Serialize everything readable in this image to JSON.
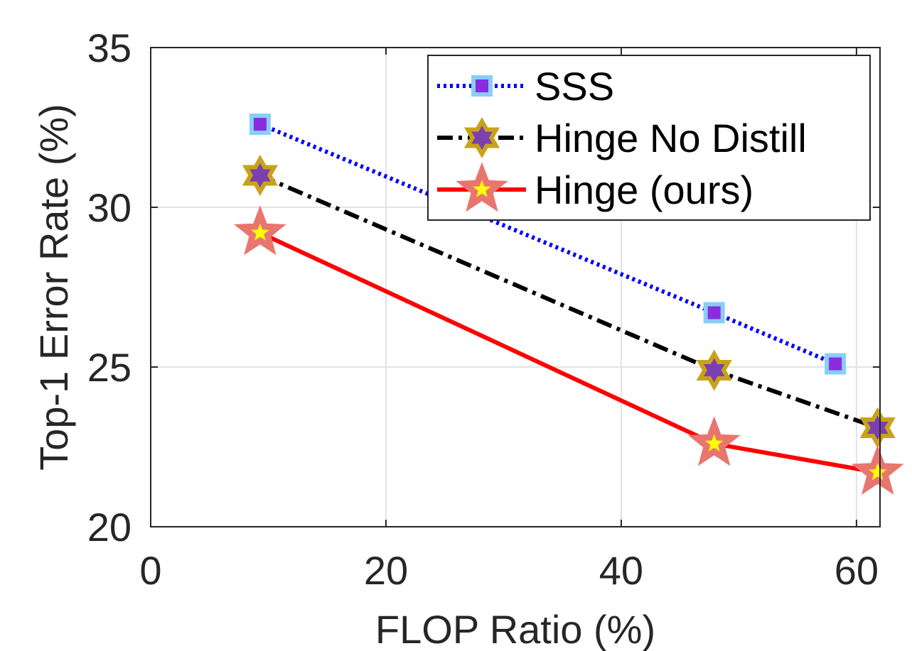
{
  "chart_data": {
    "type": "line",
    "title": "",
    "xlabel": "FLOP Ratio (%)",
    "ylabel": "Top-1 Error Rate (%)",
    "xlim": [
      0,
      62
    ],
    "ylim": [
      20,
      35
    ],
    "xticks": [
      "0",
      "20",
      "40",
      "60"
    ],
    "yticks": [
      "20",
      "25",
      "30",
      "35"
    ],
    "grid": true,
    "legend_position": "top-right",
    "series": [
      {
        "name": "SSS",
        "line_style": "dotted",
        "marker": "square",
        "color": "#0000ff",
        "marker_face": "#8a2be2",
        "marker_edge": "#87cefa",
        "x": [
          9.3,
          47.9,
          58.2
        ],
        "y": [
          32.6,
          26.7,
          25.1
        ]
      },
      {
        "name": "Hinge No Distill",
        "line_style": "dashdot",
        "marker": "hexagram",
        "color": "#000000",
        "marker_face": "#7a3fb0",
        "marker_edge": "#c8a21a",
        "x": [
          9.3,
          47.9,
          61.8
        ],
        "y": [
          31.0,
          24.9,
          23.1
        ]
      },
      {
        "name": "Hinge (ours)",
        "line_style": "solid",
        "marker": "pentagram",
        "color": "#ff0000",
        "marker_face": "#ffff00",
        "marker_edge": "#e8766e",
        "x": [
          9.3,
          47.9,
          61.8
        ],
        "y": [
          29.2,
          22.6,
          21.7
        ]
      }
    ]
  }
}
